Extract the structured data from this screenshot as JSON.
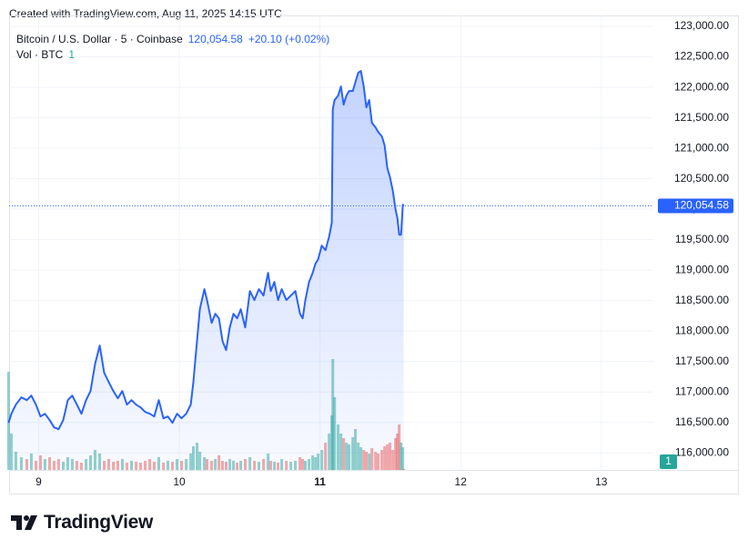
{
  "header": {
    "created": "Created with TradingView.com, Aug 11, 2025 14:15 UTC"
  },
  "chart_data": {
    "type": "line",
    "area": true,
    "grid": true,
    "legend": {
      "change": "+20.10 (+0.02%)",
      "volume_label": "Vol · BTC"
    },
    "x": [
      8.786,
      8.806,
      8.838,
      8.877,
      8.916,
      8.948,
      8.981,
      9.013,
      9.045,
      9.078,
      9.11,
      9.142,
      9.175,
      9.207,
      9.239,
      9.272,
      9.304,
      9.337,
      9.369,
      9.401,
      9.434,
      9.466,
      9.498,
      9.531,
      9.563,
      9.595,
      9.628,
      9.66,
      9.693,
      9.725,
      9.757,
      9.79,
      9.822,
      9.854,
      9.887,
      9.919,
      9.951,
      9.984,
      10.016,
      10.049,
      10.081,
      10.1,
      10.126,
      10.146,
      10.178,
      10.197,
      10.23,
      10.256,
      10.282,
      10.307,
      10.333,
      10.359,
      10.385,
      10.411,
      10.437,
      10.469,
      10.502,
      10.534,
      10.566,
      10.599,
      10.631,
      10.65,
      10.676,
      10.702,
      10.728,
      10.761,
      10.793,
      10.825,
      10.858,
      10.877,
      10.896,
      10.922,
      10.948,
      10.968,
      10.987,
      11.013,
      11.039,
      11.065,
      11.084,
      11.091,
      11.104,
      11.129,
      11.149,
      11.168,
      11.188,
      11.207,
      11.233,
      11.252,
      11.272,
      11.291,
      11.311,
      11.33,
      11.35,
      11.369,
      11.395,
      11.414,
      11.44,
      11.46,
      11.479,
      11.498,
      11.518,
      11.537,
      11.55,
      11.563,
      11.576,
      11.589,
      11.595
    ],
    "xlim": [
      8.79,
      13.37
    ],
    "xticks": [
      9,
      10,
      11,
      12,
      13
    ],
    "ylim": [
      115720,
      123180
    ],
    "yticks": [
      {
        "value": 116000,
        "label": "116,000.00"
      },
      {
        "value": 116500,
        "label": "116,500.00"
      },
      {
        "value": 117000,
        "label": "117,000.00"
      },
      {
        "value": 117500,
        "label": "117,500.00"
      },
      {
        "value": 118000,
        "label": "118,000.00"
      },
      {
        "value": 118500,
        "label": "118,500.00"
      },
      {
        "value": 119000,
        "label": "119,000.00"
      },
      {
        "value": 119500,
        "label": "119,500.00"
      },
      {
        "value": 120000,
        "label": "120,000.00"
      },
      {
        "value": 120500,
        "label": "120,500.00"
      },
      {
        "value": 121000,
        "label": "121,000.00"
      },
      {
        "value": 121500,
        "label": "121,500.00"
      },
      {
        "value": 122000,
        "label": "122,000.00"
      },
      {
        "value": 122500,
        "label": "122,500.00"
      },
      {
        "value": 123000,
        "label": "123,000.00"
      }
    ],
    "series": [
      {
        "name": "Bitcoin / U.S. Dollar · 5 · Coinbase",
        "color": "#2962ff",
        "values": [
          116493,
          116642,
          116791,
          116911,
          116866,
          116940,
          116791,
          116597,
          116642,
          116537,
          116418,
          116388,
          116537,
          116866,
          116940,
          116791,
          116642,
          116866,
          117015,
          117463,
          117761,
          117314,
          117164,
          117015,
          116896,
          117015,
          116791,
          116866,
          116791,
          116746,
          116672,
          116642,
          116597,
          116866,
          116567,
          116597,
          116493,
          116642,
          116567,
          116642,
          116791,
          117164,
          117836,
          118358,
          118687,
          118508,
          118134,
          118284,
          118209,
          117836,
          117687,
          118060,
          118284,
          118209,
          118358,
          118060,
          118657,
          118508,
          118687,
          118582,
          118955,
          118657,
          118806,
          118508,
          118687,
          118508,
          118582,
          118657,
          118284,
          118209,
          118508,
          118806,
          118955,
          119105,
          119179,
          119403,
          119328,
          119552,
          119776,
          121642,
          121791,
          121866,
          122015,
          121716,
          121866,
          121940,
          121940,
          122090,
          122239,
          122269,
          122015,
          121672,
          121791,
          121418,
          121343,
          121269,
          121194,
          121045,
          120672,
          120522,
          120299,
          120000,
          119851,
          119582,
          119582,
          120075,
          120054.58
        ]
      }
    ],
    "last_price": {
      "value": 120054.58,
      "label": "120,054.58"
    },
    "volume": {
      "ylim": [
        0,
        500
      ],
      "up_color": "#26a69a",
      "down_color": "#ef5350",
      "values": [
        108,
        40,
        20,
        14,
        12,
        18,
        10,
        16,
        12,
        14,
        10,
        12,
        9,
        14,
        12,
        10,
        8,
        12,
        16,
        22,
        18,
        10,
        12,
        9,
        10,
        12,
        8,
        10,
        9,
        8,
        10,
        12,
        9,
        14,
        8,
        10,
        9,
        12,
        10,
        12,
        18,
        26,
        30,
        20,
        14,
        12,
        10,
        12,
        16,
        10,
        9,
        12,
        10,
        8,
        10,
        12,
        14,
        10,
        9,
        12,
        18,
        10,
        9,
        8,
        12,
        10,
        9,
        10,
        14,
        12,
        10,
        12,
        16,
        14,
        18,
        22,
        30,
        40,
        60,
        122,
        80,
        50,
        40,
        35,
        30,
        28,
        36,
        45,
        30,
        25,
        22,
        20,
        18,
        24,
        20,
        18,
        22,
        26,
        28,
        30,
        22,
        35,
        40,
        50,
        30,
        25,
        1
      ]
    }
  },
  "footer": {
    "logo": "TradingView"
  }
}
